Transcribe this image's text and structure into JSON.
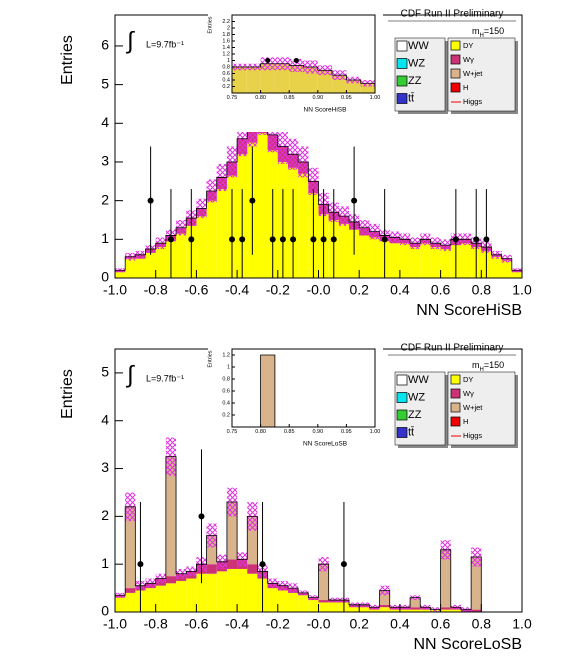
{
  "chart_data": [
    {
      "type": "histogram",
      "title": "NN ScoreHiSB",
      "ylabel": "Entries",
      "header": "CDF Run II Preliminary",
      "mass_label": [
        "m",
        "H",
        "=150"
      ],
      "integral": "∫",
      "lumi": "L=9.7fb⁻¹",
      "bins": [
        -1,
        -0.95,
        -0.9,
        -0.85,
        -0.8,
        -0.75,
        -0.7,
        -0.65,
        -0.6,
        -0.55,
        -0.5,
        -0.45,
        -0.4,
        -0.35,
        -0.3,
        -0.25,
        -0.2,
        -0.15,
        -0.1,
        -0.05,
        0,
        0.05,
        0.1,
        0.15,
        0.2,
        0.25,
        0.3,
        0.35,
        0.4,
        0.45,
        0.5,
        0.55,
        0.6,
        0.65,
        0.7,
        0.75,
        0.8,
        0.85,
        0.9,
        0.95,
        1
      ],
      "xlim": [
        -1,
        1
      ],
      "xticks": [
        {
          "value": -1,
          "label": "-1.0"
        },
        {
          "value": -0.8,
          "label": "-0.8"
        },
        {
          "value": -0.6,
          "label": "-0.6"
        },
        {
          "value": -0.4,
          "label": "-0.4"
        },
        {
          "value": -0.2,
          "label": "-0.2"
        },
        {
          "value": 0,
          "label": "-0.0"
        },
        {
          "value": 0.2,
          "label": "0.2"
        },
        {
          "value": 0.4,
          "label": "0.4"
        },
        {
          "value": 0.6,
          "label": "0.6"
        },
        {
          "value": 0.8,
          "label": "0.8"
        },
        {
          "value": 1,
          "label": "1.0"
        }
      ],
      "ylim": [
        0,
        6.8
      ],
      "yticks": [
        0,
        1,
        2,
        3,
        4,
        5,
        6
      ],
      "series": [
        {
          "name": "WW",
          "color": "#ffffff"
        },
        {
          "name": "WZ",
          "color": "#00e5ee"
        },
        {
          "name": "ZZ",
          "color": "#33cc33"
        },
        {
          "name": "tt̄",
          "color": "#3333cc"
        },
        {
          "name": "DY",
          "color": "#ffff00",
          "values": [
            0.15,
            0.5,
            0.5,
            0.65,
            0.8,
            0.95,
            1.15,
            1.35,
            1.6,
            2.0,
            2.3,
            2.65,
            3.2,
            3.5,
            3.75,
            3.3,
            3.0,
            2.85,
            2.7,
            2.2,
            1.65,
            1.5,
            1.4,
            1.25,
            1.1,
            1.05,
            0.95,
            0.9,
            0.9,
            0.8,
            0.9,
            0.8,
            0.75,
            0.85,
            0.9,
            0.8,
            0.7,
            0.55,
            0.45,
            0.15
          ]
        },
        {
          "name": "Wγ",
          "color": "#cc3377",
          "values": [
            0.05,
            0.05,
            0.1,
            0.1,
            0.1,
            0.15,
            0.15,
            0.2,
            0.2,
            0.25,
            0.3,
            0.35,
            0.4,
            0.4,
            0.45,
            0.4,
            0.4,
            0.35,
            0.3,
            0.3,
            0.25,
            0.2,
            0.2,
            0.2,
            0.2,
            0.15,
            0.15,
            0.15,
            0.1,
            0.1,
            0.1,
            0.1,
            0.1,
            0.15,
            0.1,
            0.1,
            0.1,
            0.05,
            0.05,
            0.05
          ]
        },
        {
          "name": "W+jet",
          "color": "#d9b38c"
        },
        {
          "name": "H",
          "color": "#ee0000"
        },
        {
          "name": "Higgs",
          "color": "#ee0000",
          "line": true
        }
      ],
      "uncertainty": [
        0.05,
        0.1,
        0.1,
        0.1,
        0.15,
        0.15,
        0.2,
        0.2,
        0.25,
        0.3,
        0.35,
        0.4,
        0.45,
        0.5,
        0.5,
        0.45,
        0.45,
        0.4,
        0.4,
        0.35,
        0.3,
        0.25,
        0.25,
        0.2,
        0.2,
        0.2,
        0.15,
        0.15,
        0.15,
        0.15,
        0.15,
        0.15,
        0.15,
        0.15,
        0.15,
        0.15,
        0.15,
        0.1,
        0.1,
        0.05
      ],
      "data_points": {
        "x": [
          -0.825,
          -0.725,
          -0.625,
          -0.425,
          -0.375,
          -0.325,
          -0.225,
          -0.175,
          -0.125,
          -0.025,
          0.025,
          0.075,
          0.175,
          0.325,
          0.675,
          0.775,
          0.825
        ],
        "values": [
          2,
          1,
          1,
          1,
          1,
          2,
          1,
          1,
          1,
          1,
          1,
          1,
          2,
          1,
          1,
          1,
          1
        ],
        "err_low": [
          1.4,
          1,
          1,
          1,
          1,
          1.4,
          1,
          1,
          1,
          1,
          1,
          1,
          1.4,
          1,
          1,
          1,
          1
        ],
        "err_high": [
          1.4,
          1.3,
          1.3,
          1.3,
          1.3,
          1.4,
          1.3,
          1.3,
          1.3,
          1.3,
          1.3,
          1.3,
          1.4,
          1.3,
          1.3,
          1.3,
          1.3
        ]
      },
      "inset": {
        "xlabel": "NN ScoreHiSB",
        "ylabel": "Entries",
        "bins": [
          0.75,
          0.775,
          0.8,
          0.825,
          0.85,
          0.875,
          0.9,
          0.925,
          0.95,
          0.975,
          1
        ],
        "values": [
          0.8,
          0.8,
          0.9,
          0.9,
          0.85,
          0.8,
          0.7,
          0.55,
          0.4,
          0.3
        ],
        "color": "#e8d24a",
        "uncertainty": [
          0.1,
          0.1,
          0.2,
          0.2,
          0.2,
          0.2,
          0.15,
          0.15,
          0.1,
          0.1
        ],
        "data_points": {
          "x": [
            0.8125,
            0.8625
          ],
          "values": [
            1,
            1
          ]
        },
        "xlim": [
          0.75,
          1
        ],
        "xticks": [
          {
            "value": 0.75,
            "label": "0.75"
          },
          {
            "value": 0.8,
            "label": "0.80"
          },
          {
            "value": 0.85,
            "label": "0.85"
          },
          {
            "value": 0.9,
            "label": "0.90"
          },
          {
            "value": 0.95,
            "label": "0.95"
          },
          {
            "value": 1,
            "label": "1.00"
          }
        ],
        "ylim": [
          0,
          2.4
        ],
        "yticks": [
          0.2,
          0.4,
          0.6,
          0.8,
          1,
          1.2,
          1.4,
          1.6,
          1.8,
          2,
          2.2
        ]
      }
    },
    {
      "type": "histogram",
      "title": "NN ScoreLoSB",
      "ylabel": "Entries",
      "header": "CDF Run II Preliminary",
      "mass_label": [
        "m",
        "H",
        "=150"
      ],
      "integral": "∫",
      "lumi": "L=9.7fb⁻¹",
      "bins": [
        -1,
        -0.95,
        -0.9,
        -0.85,
        -0.8,
        -0.75,
        -0.7,
        -0.65,
        -0.6,
        -0.55,
        -0.5,
        -0.45,
        -0.4,
        -0.35,
        -0.3,
        -0.25,
        -0.2,
        -0.15,
        -0.1,
        -0.05,
        0,
        0.05,
        0.1,
        0.15,
        0.2,
        0.25,
        0.3,
        0.35,
        0.4,
        0.45,
        0.5,
        0.55,
        0.6,
        0.65,
        0.7,
        0.75,
        0.8,
        0.85,
        0.9,
        0.95,
        1
      ],
      "xlim": [
        -1,
        1
      ],
      "xticks": [
        {
          "value": -1,
          "label": "-1.0"
        },
        {
          "value": -0.8,
          "label": "-0.8"
        },
        {
          "value": -0.6,
          "label": "-0.6"
        },
        {
          "value": -0.4,
          "label": "-0.4"
        },
        {
          "value": -0.2,
          "label": "-0.2"
        },
        {
          "value": 0,
          "label": "-0.0"
        },
        {
          "value": 0.2,
          "label": "0.2"
        },
        {
          "value": 0.4,
          "label": "0.4"
        },
        {
          "value": 0.6,
          "label": "0.6"
        },
        {
          "value": 0.8,
          "label": "0.8"
        },
        {
          "value": 1,
          "label": "1.0"
        }
      ],
      "ylim": [
        0,
        5.5
      ],
      "yticks": [
        0,
        1,
        2,
        3,
        4,
        5
      ],
      "series": [
        {
          "name": "WW",
          "color": "#ffffff"
        },
        {
          "name": "WZ",
          "color": "#00e5ee"
        },
        {
          "name": "ZZ",
          "color": "#33cc33"
        },
        {
          "name": "tt̄",
          "color": "#3333cc"
        },
        {
          "name": "DY",
          "color": "#ffff00",
          "values": [
            0.3,
            0.4,
            0.45,
            0.5,
            0.55,
            0.6,
            0.65,
            0.7,
            0.8,
            0.8,
            0.85,
            0.9,
            0.9,
            0.8,
            0.7,
            0.5,
            0.45,
            0.4,
            0.35,
            0.25,
            0.2,
            0.2,
            0.2,
            0.1,
            0.1,
            0.05,
            0.1,
            0.05,
            0.05,
            0.05,
            0.05,
            0.05,
            0.05,
            0.05,
            0,
            0,
            0,
            0,
            0,
            0
          ]
        },
        {
          "name": "Wγ",
          "color": "#cc3377",
          "values": [
            0.05,
            0.1,
            0.1,
            0.1,
            0.15,
            0.15,
            0.15,
            0.15,
            0.2,
            0.2,
            0.2,
            0.2,
            0.2,
            0.2,
            0.15,
            0.1,
            0.1,
            0.1,
            0.05,
            0.05,
            0.05,
            0.05,
            0.05,
            0.05,
            0.05,
            0.05,
            0.05,
            0.05,
            0.05,
            0.05,
            0.05,
            0,
            0.05,
            0.05,
            0.05,
            0.05,
            0,
            0,
            0,
            0
          ]
        },
        {
          "name": "W+jet",
          "color": "#d9b38c",
          "values": [
            0,
            1.7,
            0,
            0,
            0,
            2.5,
            0,
            0,
            0,
            0.6,
            0,
            1.2,
            0,
            1.0,
            0,
            0,
            0,
            0,
            0,
            0,
            0.75,
            0,
            0,
            0,
            0,
            0,
            0.3,
            0,
            0,
            0.2,
            0,
            0,
            1.2,
            0,
            0,
            1.1,
            0,
            0,
            0,
            0
          ]
        },
        {
          "name": "H",
          "color": "#ee0000"
        },
        {
          "name": "Higgs",
          "color": "#ee0000",
          "line": true
        }
      ],
      "uncertainty": [
        0.05,
        0.3,
        0.1,
        0.1,
        0.1,
        0.4,
        0.1,
        0.1,
        0.15,
        0.25,
        0.15,
        0.3,
        0.15,
        0.3,
        0.15,
        0.1,
        0.1,
        0.1,
        0.05,
        0.05,
        0.15,
        0.05,
        0.05,
        0.05,
        0.05,
        0.05,
        0.1,
        0.05,
        0.05,
        0.05,
        0.05,
        0.05,
        0.2,
        0.05,
        0.05,
        0.2,
        0,
        0,
        0,
        0
      ],
      "data_points": {
        "x": [
          -0.875,
          -0.575,
          -0.275,
          0.125
        ],
        "values": [
          1,
          2,
          1,
          1
        ],
        "err_low": [
          1,
          1.4,
          1,
          1
        ],
        "err_high": [
          1.3,
          1.4,
          1.3,
          1.3
        ]
      },
      "inset": {
        "xlabel": "NN ScoreLoSB",
        "ylabel": "Entries",
        "bins": [
          0.75,
          0.775,
          0.8,
          0.825,
          0.85,
          0.875,
          0.9,
          0.925,
          0.95,
          0.975,
          1
        ],
        "values": [
          0,
          0,
          1.2,
          0,
          0,
          0,
          0,
          0,
          0,
          0
        ],
        "color": "#d9b38c",
        "xlim": [
          0.75,
          1
        ],
        "xticks": [
          {
            "value": 0.75,
            "label": "0.75"
          },
          {
            "value": 0.8,
            "label": "0.80"
          },
          {
            "value": 0.85,
            "label": "0.85"
          },
          {
            "value": 0.9,
            "label": "0.90"
          },
          {
            "value": 0.95,
            "label": "0.95"
          },
          {
            "value": 1,
            "label": "1.00"
          }
        ],
        "ylim": [
          0,
          1.3
        ],
        "yticks": [
          0.2,
          0.4,
          0.6,
          0.8,
          1,
          1.2
        ]
      }
    }
  ]
}
